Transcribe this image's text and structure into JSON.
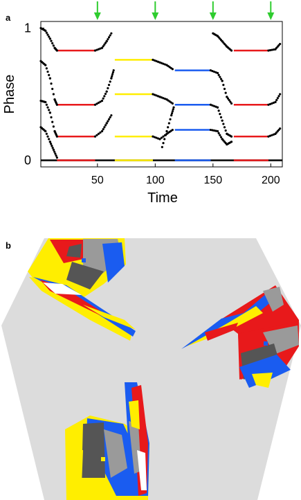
{
  "panel_a_label": "a",
  "panel_b_label": "b",
  "colors": {
    "red": "#e8191b",
    "yellow": "#ffee00",
    "blue": "#1a5cf0",
    "black": "#000000",
    "green": "#2ecc2e",
    "hex_bg": "#dcdcdc",
    "dark_gray": "#555555",
    "mid_gray": "#9a9a9a"
  },
  "chart_data": {
    "type": "scatter",
    "xlabel": "Time",
    "ylabel": "Phase",
    "xlim": [
      1,
      210
    ],
    "ylim": [
      -0.05,
      1.05
    ],
    "x_ticks": [
      50,
      100,
      150,
      200
    ],
    "y_ticks": [
      0,
      1
    ],
    "arrows_x": [
      50,
      100,
      150,
      200
    ],
    "segments": [
      {
        "y": 0.0,
        "x0": 1,
        "x1": 210,
        "color": "black"
      },
      {
        "y": 0.0,
        "x0": 15,
        "x1": 48,
        "color": "red"
      },
      {
        "y": 0.0,
        "x0": 65,
        "x1": 98,
        "color": "yellow"
      },
      {
        "y": 0.0,
        "x0": 117,
        "x1": 148,
        "color": "blue"
      },
      {
        "y": 0.0,
        "x0": 168,
        "x1": 198,
        "color": "red"
      },
      {
        "y": 0.18,
        "x0": 15,
        "x1": 48,
        "color": "red"
      },
      {
        "y": 0.18,
        "x0": 65,
        "x1": 98,
        "color": "yellow"
      },
      {
        "y": 0.23,
        "x0": 117,
        "x1": 148,
        "color": "blue"
      },
      {
        "y": 0.18,
        "x0": 168,
        "x1": 198,
        "color": "red"
      },
      {
        "y": 0.42,
        "x0": 15,
        "x1": 48,
        "color": "red"
      },
      {
        "y": 0.5,
        "x0": 65,
        "x1": 98,
        "color": "yellow"
      },
      {
        "y": 0.42,
        "x0": 117,
        "x1": 148,
        "color": "blue"
      },
      {
        "y": 0.42,
        "x0": 168,
        "x1": 198,
        "color": "red"
      },
      {
        "y": 0.83,
        "x0": 15,
        "x1": 48,
        "color": "red"
      },
      {
        "y": 0.76,
        "x0": 65,
        "x1": 98,
        "color": "yellow"
      },
      {
        "y": 0.68,
        "x0": 117,
        "x1": 148,
        "color": "blue"
      },
      {
        "y": 0.83,
        "x0": 168,
        "x1": 198,
        "color": "red"
      }
    ]
  }
}
